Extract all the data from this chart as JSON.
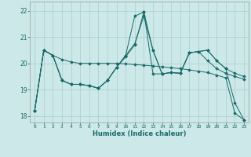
{
  "xlabel": "Humidex (Indice chaleur)",
  "background_color": "#cce8e8",
  "grid_color": "#aacece",
  "line_color": "#1a6b6b",
  "xlim": [
    -0.5,
    23.5
  ],
  "ylim": [
    17.75,
    22.35
  ],
  "yticks": [
    18,
    19,
    20,
    21,
    22
  ],
  "xticks": [
    0,
    1,
    2,
    3,
    4,
    5,
    6,
    7,
    8,
    9,
    10,
    11,
    12,
    13,
    14,
    15,
    16,
    17,
    18,
    19,
    20,
    21,
    22,
    23
  ],
  "series": [
    [
      18.2,
      20.5,
      20.3,
      20.15,
      20.05,
      20.0,
      20.0,
      20.0,
      20.0,
      20.0,
      19.98,
      19.95,
      19.93,
      19.9,
      19.87,
      19.83,
      19.8,
      19.75,
      19.7,
      19.65,
      19.55,
      19.45,
      18.1,
      17.85
    ],
    [
      18.2,
      20.5,
      20.3,
      19.35,
      19.2,
      19.2,
      19.15,
      19.05,
      19.35,
      19.85,
      20.3,
      21.8,
      21.95,
      20.5,
      19.6,
      19.65,
      19.62,
      20.4,
      20.45,
      20.5,
      20.1,
      19.8,
      19.62,
      19.5
    ],
    [
      18.2,
      20.5,
      20.3,
      19.35,
      19.2,
      19.2,
      19.15,
      19.05,
      19.35,
      19.85,
      20.25,
      20.7,
      21.95,
      19.6,
      19.6,
      19.65,
      19.62,
      20.4,
      20.45,
      20.5,
      20.1,
      19.8,
      18.5,
      17.85
    ],
    [
      18.2,
      20.5,
      20.3,
      19.35,
      19.2,
      19.2,
      19.15,
      19.05,
      19.35,
      19.85,
      20.3,
      20.75,
      21.8,
      20.5,
      19.6,
      19.65,
      19.62,
      20.4,
      20.45,
      20.1,
      19.8,
      19.62,
      19.5,
      19.4
    ]
  ]
}
